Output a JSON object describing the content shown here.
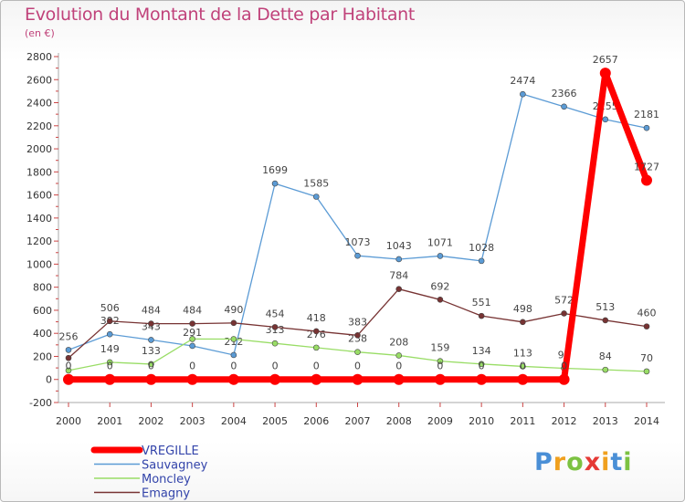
{
  "title": "Evolution du Montant de la Dette par Habitant",
  "subtitle": "(en €)",
  "logo": {
    "text": "Proxiti",
    "letters": [
      "P",
      "r",
      "o",
      "x",
      "i",
      "t",
      "i"
    ]
  },
  "chart_data": {
    "type": "line",
    "title": "Evolution du Montant de la Dette par Habitant",
    "ylabel": "(en €)",
    "xlabel": "",
    "x": [
      "2000",
      "2001",
      "2002",
      "2003",
      "2004",
      "2005",
      "2006",
      "2007",
      "2008",
      "2009",
      "2010",
      "2011",
      "2012",
      "2013",
      "2014"
    ],
    "ylim": [
      -200,
      2800
    ],
    "yticks": [
      -200,
      0,
      200,
      400,
      600,
      800,
      1000,
      1200,
      1400,
      1600,
      1800,
      2000,
      2200,
      2400,
      2600,
      2800
    ],
    "grid": false,
    "legend": "bottom-left",
    "series": [
      {
        "name": "VREGILLE",
        "color": "#ff0000",
        "values": [
          0,
          0,
          0,
          0,
          0,
          0,
          0,
          0,
          0,
          0,
          0,
          0,
          0,
          2657,
          1727
        ]
      },
      {
        "name": "Sauvagney",
        "color": "#5b9bd5",
        "values": [
          256,
          392,
          343,
          291,
          212,
          1699,
          1585,
          1073,
          1043,
          1071,
          1028,
          2474,
          2366,
          2255,
          2181
        ]
      },
      {
        "name": "Moncley",
        "color": "#99dd66",
        "values": [
          78,
          149,
          133,
          351,
          350,
          313,
          276,
          238,
          208,
          159,
          134,
          113,
          97,
          84,
          70
        ]
      },
      {
        "name": "Emagny",
        "color": "#773333",
        "values": [
          186,
          506,
          484,
          484,
          490,
          454,
          418,
          383,
          784,
          692,
          551,
          498,
          572,
          513,
          460
        ]
      }
    ],
    "labels": {
      "VREGILLE": [
        "0",
        "0",
        "0",
        "0",
        "0",
        "0",
        "0",
        "0",
        "0",
        "0",
        "0",
        "0",
        "0",
        "2657",
        "1727"
      ],
      "Sauvagney": [
        "256",
        "392",
        "343",
        "291",
        "212",
        "1699",
        "1585",
        "1073",
        "1043",
        "1071",
        "1028",
        "2474",
        "2366",
        "2255",
        "2181"
      ],
      "Moncley": [
        "",
        "149",
        "133",
        "",
        "",
        "313",
        "276",
        "238",
        "208",
        "159",
        "134",
        "113",
        "97",
        "84",
        "70"
      ],
      "Emagny": [
        "",
        "506",
        "484",
        "484",
        "490",
        "454",
        "418",
        "383",
        "784",
        "692",
        "551",
        "498",
        "572",
        "513",
        "460"
      ]
    }
  }
}
